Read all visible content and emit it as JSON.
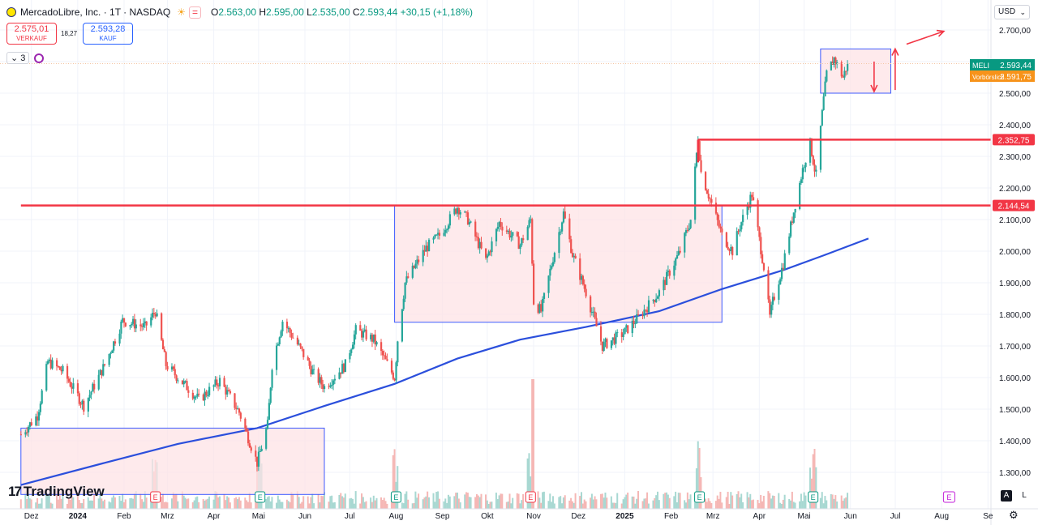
{
  "header": {
    "symbol": "MercadoLibre, Inc. · 1T · NASDAQ",
    "o_label": "O",
    "o": "2.563,00",
    "h_label": "H",
    "h": "2.595,00",
    "l_label": "L",
    "l": "2.535,00",
    "c_label": "C",
    "c": "2.593,44",
    "change": "+30,15 (+1,18%)"
  },
  "trade": {
    "sell_price": "2.575,01",
    "sell_label": "VERKAUF",
    "spread": "18,27",
    "buy_price": "2.593,28",
    "buy_label": "KAUF"
  },
  "indicators": {
    "count": "3"
  },
  "currency": "USD",
  "branding": "TradingView",
  "controls": {
    "auto": "A",
    "log": "L"
  },
  "colors": {
    "up": "#26a69a",
    "down": "#ef5350",
    "ma": "#2b4fdc",
    "level": "#f23645",
    "zone_fill": "#fde3e6",
    "zone_border": "#3d5afe"
  },
  "chart_data": {
    "type": "candlestick",
    "x_ticks": [
      "Dez",
      "2024",
      "Feb",
      "Mrz",
      "Apr",
      "Mai",
      "Jun",
      "Jul",
      "Aug",
      "Sep",
      "Okt",
      "Nov",
      "Dez",
      "2025",
      "Feb",
      "Mrz",
      "Apr",
      "Mai",
      "Jun",
      "Jul",
      "Aug",
      "Se"
    ],
    "y_ticks": [
      "2.700,00",
      "2.600,00",
      "2.500,00",
      "2.400,00",
      "2.300,00",
      "2.200,00",
      "2.100,00",
      "2.000,00",
      "1.900,00",
      "1.800,00",
      "1.700,00",
      "1.600,00",
      "1.500,00",
      "1.400,00",
      "1.300,00"
    ],
    "y_tick_values": [
      2700,
      2600,
      2500,
      2400,
      2300,
      2200,
      2100,
      2000,
      1900,
      1800,
      1700,
      1600,
      1500,
      1400,
      1300
    ],
    "ylim": [
      1230,
      2760
    ],
    "price_anchors": [
      [
        "2023-11-24",
        1420
      ],
      [
        "2023-12-05",
        1480
      ],
      [
        "2023-12-12",
        1650
      ],
      [
        "2023-12-22",
        1620
      ],
      [
        "2024-01-05",
        1510
      ],
      [
        "2024-01-19",
        1640
      ],
      [
        "2024-01-31",
        1780
      ],
      [
        "2024-02-15",
        1760
      ],
      [
        "2024-02-22",
        1810
      ],
      [
        "2024-02-29",
        1640
      ],
      [
        "2024-03-08",
        1600
      ],
      [
        "2024-03-22",
        1530
      ],
      [
        "2024-04-05",
        1590
      ],
      [
        "2024-04-18",
        1490
      ],
      [
        "2024-04-30",
        1330
      ],
      [
        "2024-05-07",
        1450
      ],
      [
        "2024-05-10",
        1640
      ],
      [
        "2024-05-17",
        1780
      ],
      [
        "2024-05-29",
        1690
      ],
      [
        "2024-06-07",
        1610
      ],
      [
        "2024-06-14",
        1570
      ],
      [
        "2024-06-28",
        1640
      ],
      [
        "2024-07-05",
        1750
      ],
      [
        "2024-07-17",
        1720
      ],
      [
        "2024-07-31",
        1600
      ],
      [
        "2024-08-02",
        1720
      ],
      [
        "2024-08-07",
        1900
      ],
      [
        "2024-08-21",
        2010
      ],
      [
        "2024-08-30",
        2050
      ],
      [
        "2024-09-11",
        2140
      ],
      [
        "2024-09-18",
        2100
      ],
      [
        "2024-09-30",
        1970
      ],
      [
        "2024-10-09",
        2090
      ],
      [
        "2024-10-23",
        2020
      ],
      [
        "2024-10-30",
        2100
      ],
      [
        "2024-11-01",
        1840
      ],
      [
        "2024-11-06",
        1810
      ],
      [
        "2024-11-14",
        1980
      ],
      [
        "2024-11-21",
        2120
      ],
      [
        "2024-11-27",
        1990
      ],
      [
        "2024-12-06",
        1870
      ],
      [
        "2024-12-17",
        1700
      ],
      [
        "2024-12-31",
        1740
      ],
      [
        "2025-01-10",
        1790
      ],
      [
        "2025-01-24",
        1870
      ],
      [
        "2025-02-07",
        2000
      ],
      [
        "2025-02-14",
        2100
      ],
      [
        "2025-02-19",
        2360
      ],
      [
        "2025-02-21",
        2250
      ],
      [
        "2025-02-28",
        2150
      ],
      [
        "2025-03-07",
        2050
      ],
      [
        "2025-03-14",
        2000
      ],
      [
        "2025-03-19",
        2080
      ],
      [
        "2025-03-27",
        2180
      ],
      [
        "2025-04-04",
        1950
      ],
      [
        "2025-04-08",
        1790
      ],
      [
        "2025-04-10",
        1840
      ],
      [
        "2025-04-17",
        1960
      ],
      [
        "2025-04-25",
        2150
      ],
      [
        "2025-05-01",
        2280
      ],
      [
        "2025-05-05",
        2340
      ],
      [
        "2025-05-08",
        2260
      ],
      [
        "2025-05-09",
        2240
      ],
      [
        "2025-05-12",
        2390
      ],
      [
        "2025-05-14",
        2480
      ],
      [
        "2025-05-16",
        2560
      ],
      [
        "2025-05-21",
        2610
      ],
      [
        "2025-05-27",
        2550
      ],
      [
        "2025-05-30",
        2593.44
      ]
    ],
    "moving_average": [
      [
        "2023-11-24",
        1260
      ],
      [
        "2024-01-19",
        1330
      ],
      [
        "2024-03-08",
        1390
      ],
      [
        "2024-04-30",
        1440
      ],
      [
        "2024-06-14",
        1510
      ],
      [
        "2024-07-31",
        1580
      ],
      [
        "2024-09-11",
        1660
      ],
      [
        "2024-10-23",
        1720
      ],
      [
        "2024-12-06",
        1760
      ],
      [
        "2025-01-24",
        1810
      ],
      [
        "2025-03-07",
        1880
      ],
      [
        "2025-04-17",
        1940
      ],
      [
        "2025-05-16",
        1990
      ],
      [
        "2025-06-13",
        2040
      ]
    ],
    "horizontal_lines": [
      {
        "value": 2144.54,
        "label": "2.144,54",
        "from": "2023-11-24"
      },
      {
        "value": 2352.75,
        "label": "2.352,75",
        "from": "2025-02-19"
      }
    ],
    "zones": [
      {
        "from": "2023-11-24",
        "to": "2024-06-14",
        "low": 1230,
        "high": 1440
      },
      {
        "from": "2024-07-31",
        "to": "2025-03-07",
        "low": 1775,
        "high": 2144.54
      },
      {
        "from": "2025-05-12",
        "to": "2025-06-28",
        "low": 2500,
        "high": 2640
      }
    ],
    "markers": [
      {
        "label": "MELI",
        "value": "2.593,44",
        "y": 2593.44
      },
      {
        "label": "Vorbörslich",
        "value": "2.591,75",
        "y": 2591.75
      }
    ],
    "earnings_dates": [
      "2024-02-22",
      "2024-05-02",
      "2024-08-01",
      "2024-10-30",
      "2025-02-20",
      "2025-05-07"
    ],
    "upcoming_event_date": "2025-08-06",
    "grid": true
  }
}
